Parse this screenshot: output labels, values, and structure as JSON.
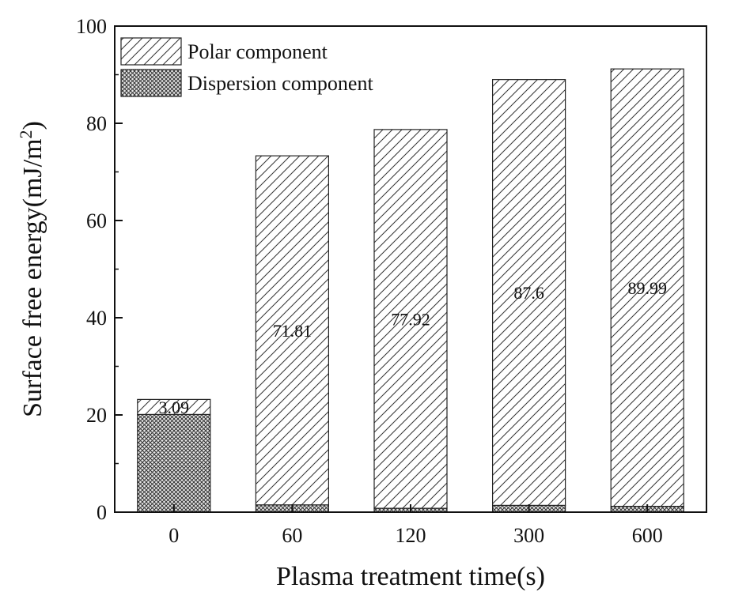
{
  "chart_data": {
    "type": "bar",
    "stacked": true,
    "title": "",
    "xlabel": "Plasma treatment time(s)",
    "ylabel": "Surface free energy(mJ/m",
    "ylabel_superscript": "2",
    "ylabel_close": ")",
    "categories": [
      "0",
      "60",
      "120",
      "300",
      "600"
    ],
    "ylim": [
      0,
      100
    ],
    "yticks": [
      0,
      20,
      40,
      60,
      80,
      100
    ],
    "series": [
      {
        "name": "Dispersion component",
        "pattern": "crosshatch",
        "values": [
          20.1,
          1.5,
          0.8,
          1.4,
          1.2
        ]
      },
      {
        "name": "Polar component",
        "pattern": "diagonal",
        "values": [
          3.09,
          71.81,
          77.92,
          87.6,
          89.99
        ]
      }
    ],
    "data_labels": [
      "3.09",
      "71.81",
      "77.92",
      "87.6",
      "89.99"
    ],
    "legend": {
      "position": "top-left",
      "entries": [
        "Polar component",
        "Dispersion component"
      ]
    },
    "grid": false
  }
}
